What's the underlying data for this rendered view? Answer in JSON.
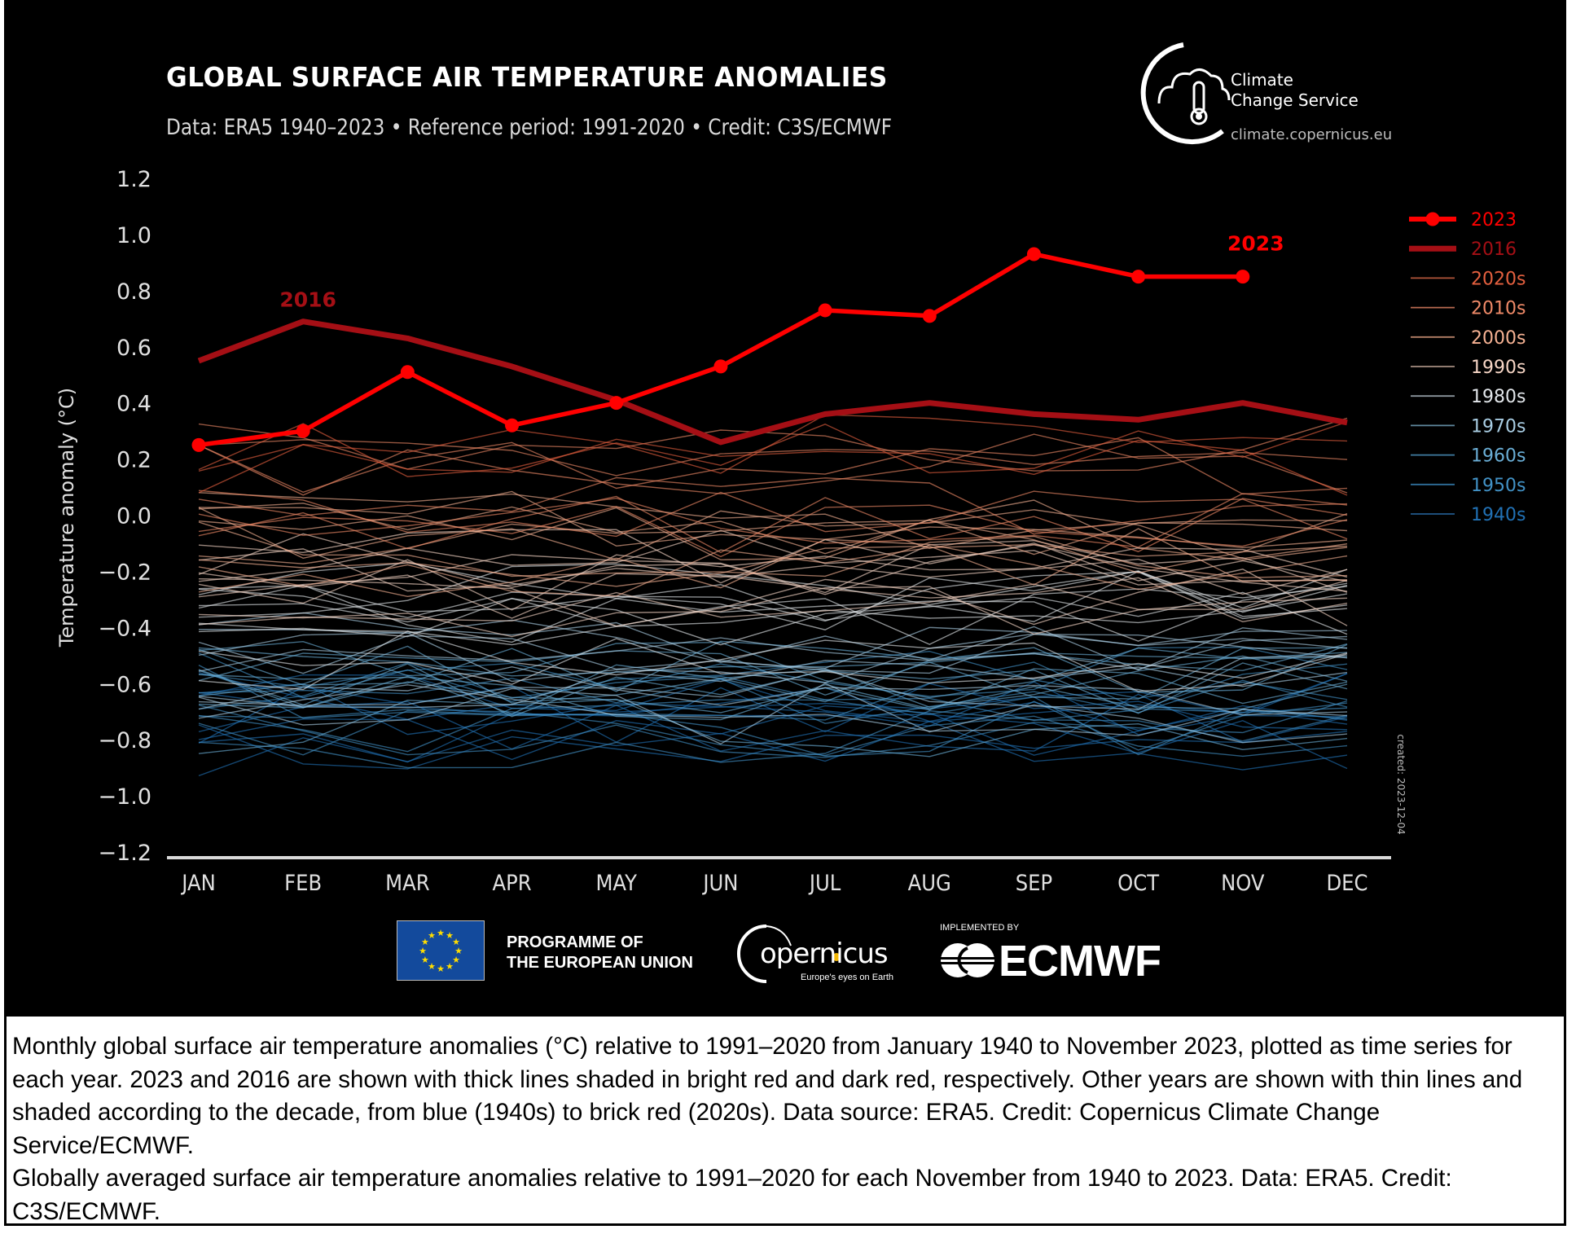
{
  "header": {
    "title": "GLOBAL SURFACE AIR TEMPERATURE ANOMALIES",
    "subtitle": "Data: ERA5 1940–2023 • Reference period: 1991-2020 • Credit: C3S/ECMWF"
  },
  "brand": {
    "c3s_line1": "Climate",
    "c3s_line2": "Change Service",
    "c3s_url": "climate.copernicus.eu",
    "eu_line1": "PROGRAMME OF",
    "eu_line2": "THE EUROPEAN UNION",
    "copernicus_word": "opernicus",
    "copernicus_tagline": "Europe's eyes on Earth",
    "implemented_by": "IMPLEMENTED BY",
    "ecmwf": "ECMWF"
  },
  "created_note": "created: 2023-12-04",
  "caption": {
    "paragraph1": "Monthly global surface air temperature anomalies (°C) relative to 1991–2020 from January 1940 to November 2023, plotted as time series for each year. 2023 and 2016 are shown with thick lines shaded in bright red and dark red, respectively. Other years are shown with thin lines and shaded according to the decade, from blue (1940s) to brick red (2020s). Data source: ERA5. Credit: Copernicus Climate Change Service/ECMWF.",
    "paragraph2": "Globally averaged surface air temperature anomalies relative to 1991–2020 for each November from 1940 to 2023. Data: ERA5. Credit: C3S/ECMWF."
  },
  "colors": {
    "background": "#000000",
    "y2023": "#ff0000",
    "y2016": "#a50f15",
    "axis": "#d9d9d9",
    "tick_text": "#e0e0e0"
  },
  "chart_data": {
    "type": "line",
    "title": "GLOBAL SURFACE AIR TEMPERATURE ANOMALIES",
    "xlabel": "",
    "ylabel": "Temperature anomaly (°C)",
    "categories": [
      "JAN",
      "FEB",
      "MAR",
      "APR",
      "MAY",
      "JUN",
      "JUL",
      "AUG",
      "SEP",
      "OCT",
      "NOV",
      "DEC"
    ],
    "yticks": [
      "1.2",
      "1.0",
      "0.8",
      "0.6",
      "0.4",
      "0.2",
      "0.0",
      "−0.2",
      "−0.4",
      "−0.6",
      "−0.8",
      "−1.0",
      "−1.2"
    ],
    "ytick_values": [
      1.2,
      1.0,
      0.8,
      0.6,
      0.4,
      0.2,
      0.0,
      -0.2,
      -0.4,
      -0.6,
      -0.8,
      -1.0,
      -1.2
    ],
    "ylim": [
      -1.2,
      1.2
    ],
    "grid": false,
    "legend_position": "right",
    "legend": [
      {
        "label": "2023",
        "color": "#ff0000",
        "style": "thick-marker"
      },
      {
        "label": "2016",
        "color": "#a50f15",
        "style": "thick"
      },
      {
        "label": "2020s",
        "color": "#e5603f",
        "line_color": "#b0543a",
        "style": "thin"
      },
      {
        "label": "2010s",
        "color": "#f08a68",
        "line_color": "#b86a50",
        "style": "thin"
      },
      {
        "label": "2000s",
        "color": "#f6b293",
        "line_color": "#b58068",
        "style": "thin"
      },
      {
        "label": "1990s",
        "color": "#f7d6c6",
        "line_color": "#a58d80",
        "style": "thin"
      },
      {
        "label": "1980s",
        "color": "#e2e6ea",
        "line_color": "#8b959c",
        "style": "thin"
      },
      {
        "label": "1970s",
        "color": "#a9cde3",
        "line_color": "#5f889e",
        "style": "thin"
      },
      {
        "label": "1960s",
        "color": "#6aaed6",
        "line_color": "#3f7ca0",
        "style": "thin"
      },
      {
        "label": "1950s",
        "color": "#4292c6",
        "line_color": "#2f6f9a",
        "style": "thin"
      },
      {
        "label": "1940s",
        "color": "#2171b5",
        "line_color": "#225a8c",
        "style": "thin"
      }
    ],
    "series": [
      {
        "name": "2023",
        "values": [
          0.25,
          0.3,
          0.51,
          0.32,
          0.4,
          0.53,
          0.73,
          0.71,
          0.93,
          0.85,
          0.85,
          null
        ],
        "label": "2023"
      },
      {
        "name": "2016",
        "values": [
          0.55,
          0.69,
          0.63,
          0.53,
          0.41,
          0.26,
          0.36,
          0.4,
          0.36,
          0.34,
          0.4,
          0.33
        ],
        "label": "2016"
      }
    ],
    "decade_bands": [
      {
        "decade": "2020s",
        "center": 0.25,
        "spread": 0.15,
        "count": 3
      },
      {
        "decade": "2010s",
        "center": 0.12,
        "spread": 0.18,
        "count": 9
      },
      {
        "decade": "2000s",
        "center": -0.08,
        "spread": 0.15,
        "count": 10
      },
      {
        "decade": "1990s",
        "center": -0.27,
        "spread": 0.14,
        "count": 10
      },
      {
        "decade": "1980s",
        "center": -0.4,
        "spread": 0.14,
        "count": 10
      },
      {
        "decade": "1970s",
        "center": -0.58,
        "spread": 0.14,
        "count": 10
      },
      {
        "decade": "1960s",
        "center": -0.65,
        "spread": 0.12,
        "count": 10
      },
      {
        "decade": "1950s",
        "center": -0.68,
        "spread": 0.13,
        "count": 10
      },
      {
        "decade": "1940s",
        "center": -0.7,
        "spread": 0.14,
        "count": 10
      }
    ],
    "annotations": [
      {
        "text": "2016",
        "at_month": "FEB",
        "color": "#a50f15"
      },
      {
        "text": "2023",
        "at_month": "NOV",
        "color": "#ff0000"
      }
    ]
  }
}
